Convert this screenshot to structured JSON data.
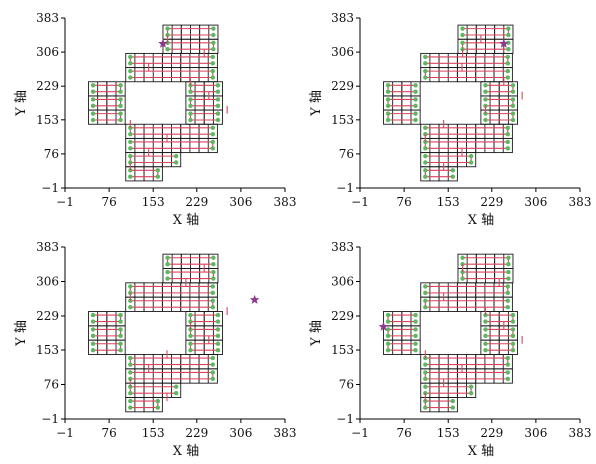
{
  "axis_text": {
    "xlabel": "X 轴",
    "ylabel": "Y 轴",
    "ticks": [
      "−1",
      "76",
      "153",
      "229",
      "306",
      "383"
    ]
  },
  "chart_data": [
    {
      "type": "scatter",
      "panel": "top-left",
      "xlabel": "X 轴",
      "ylabel": "Y 轴",
      "xticks": [
        -1,
        76,
        153,
        229,
        306,
        383
      ],
      "yticks": [
        -1,
        76,
        153,
        229,
        306,
        383
      ],
      "xlim": [
        -1,
        383
      ],
      "ylim": [
        -1,
        383
      ],
      "start_marker": {
        "shape": "star",
        "color": "#8e3b8e",
        "x": 170,
        "y": 325
      },
      "grid_cells": "cross-shaped region of square cells, side ≈ 32 units"
    },
    {
      "type": "scatter",
      "panel": "top-right",
      "xlabel": "X 轴",
      "ylabel": "Y 轴",
      "xticks": [
        -1,
        76,
        153,
        229,
        306,
        383
      ],
      "yticks": [
        -1,
        76,
        153,
        229,
        306,
        383
      ],
      "xlim": [
        -1,
        383
      ],
      "ylim": [
        -1,
        383
      ],
      "start_marker": {
        "shape": "star",
        "color": "#8e3b8e",
        "x": 250,
        "y": 325
      }
    },
    {
      "type": "scatter",
      "panel": "bottom-left",
      "xlabel": "X 轴",
      "ylabel": "Y 轴",
      "xticks": [
        -1,
        76,
        153,
        229,
        306,
        383
      ],
      "yticks": [
        -1,
        76,
        153,
        229,
        306,
        383
      ],
      "xlim": [
        -1,
        383
      ],
      "ylim": [
        -1,
        383
      ],
      "start_marker": {
        "shape": "star",
        "color": "#8e3b8e",
        "x": 330,
        "y": 265
      }
    },
    {
      "type": "scatter",
      "panel": "bottom-right",
      "xlabel": "X 轴",
      "ylabel": "Y 轴",
      "xticks": [
        -1,
        76,
        153,
        229,
        306,
        383
      ],
      "yticks": [
        -1,
        76,
        153,
        229,
        306,
        383
      ],
      "xlim": [
        -1,
        383
      ],
      "ylim": [
        -1,
        383
      ],
      "start_marker": {
        "shape": "star",
        "color": "#8e3b8e",
        "x": 40,
        "y": 205
      }
    }
  ],
  "colors": {
    "grid": "#1a1a1a",
    "path": "#d9455f",
    "waypoint": "#5cb85c",
    "start": "#8e3b8e"
  }
}
